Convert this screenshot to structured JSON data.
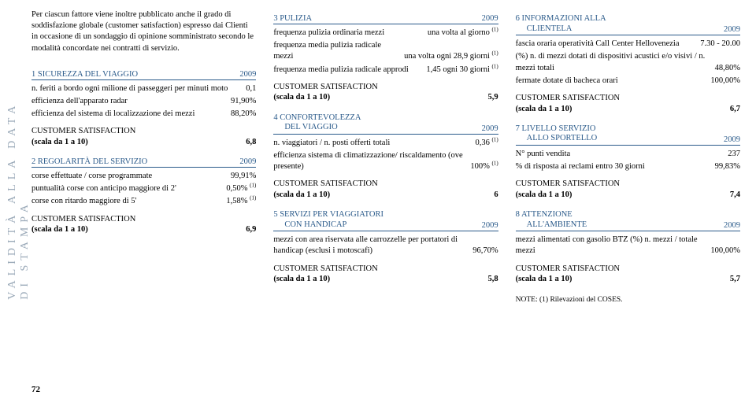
{
  "sidebar": "VALIDITÀ ALLA DATA DI STAMPA",
  "pageNum": "72",
  "intro": "Per ciascun fattore viene inoltre pubblicato anche il grado di soddisfazione globale (customer satisfaction) espresso dai Clienti in occasione di un sondaggio di opinione somministrato secondo le modalità concordate nei contratti di servizio.",
  "year": "2009",
  "s1": {
    "title": "1  SICUREZZA DEL VIAGGIO",
    "r1l": "n. feriti a bordo ogni milione di passeggeri per minuti moto",
    "r1v": "0,1",
    "r2l": "efficienza dell'apparato radar",
    "r2v": "91,90%",
    "r3l": "efficienza del sistema di localizzazione dei mezzi",
    "r3v": "88,20%",
    "csv": "6,8"
  },
  "s2": {
    "title": "2  REGOLARITÀ DEL SERVIZIO",
    "r1l": "corse effettuate / corse programmate",
    "r1v": "99,91%",
    "r2l": "puntualità corse con anticipo maggiore di 2'",
    "r2v": "0,50%",
    "r3l": "corse con ritardo maggiore di 5'",
    "r3v": "1,58%",
    "csv": "6,9"
  },
  "s3": {
    "title": "3  PULIZIA",
    "r1l": "frequenza pulizia ordinaria mezzi",
    "r1v": "una volta al giorno",
    "r2l": "frequenza media pulizia radicale mezzi",
    "r2v": "una volta ogni 28,9 giorni",
    "r3l": "frequenza media pulizia radicale approdi",
    "r3v": "1,45 ogni 30 giorni",
    "csv": "5,9"
  },
  "s4": {
    "t1": "4  CONFORTEVOLEZZA",
    "t2": "DEL VIAGGIO",
    "r1l": "n. viaggiatori / n. posti offerti totali",
    "r1v": "0,36",
    "r2l": "efficienza sistema di climatizzazione/ riscaldamento (ove presente)",
    "r2v": "100%",
    "csv": "6"
  },
  "s5": {
    "t1": "5  SERVIZI PER VIAGGIATORI",
    "t2": "CON HANDICAP",
    "r1l": "mezzi con area riservata alle carrozzelle per portatori di handicap (esclusi i motoscafi)",
    "r1v": "96,70%",
    "csv": "5,8"
  },
  "s6": {
    "t1": "6  INFORMAZIONI ALLA",
    "t2": "CLIENTELA",
    "r1l": "fascia oraria operatività Call Center Hellovenezia",
    "r1v": "7.30 - 20.00",
    "r2l": "(%) n. di mezzi dotati di dispositivi acustici e/o visivi / n. mezzi totali",
    "r2v": "48,80%",
    "r3l": "fermate dotate di bacheca orari",
    "r3v": "100,00%",
    "csv": "6,7"
  },
  "s7": {
    "t1": "7  LIVELLO SERVIZIO",
    "t2": "ALLO SPORTELLO",
    "r1l": "N° punti vendita",
    "r1v": "237",
    "r2l": "% di risposta ai reclami entro 30 giorni",
    "r2v": "99,83%",
    "csv": "7,4"
  },
  "s8": {
    "t1": "8  ATTENZIONE",
    "t2": "ALL'AMBIENTE",
    "r1l": "mezzi alimentati con gasolio BTZ (%) n. mezzi / totale mezzi",
    "r1v": "100,00%",
    "csv": "5,7"
  },
  "csHead": "CUSTOMER SATISFACTION",
  "csLabel": "(scala da 1 a 10)",
  "note": "NOTE:  (1)  Rilevazioni del COSES."
}
